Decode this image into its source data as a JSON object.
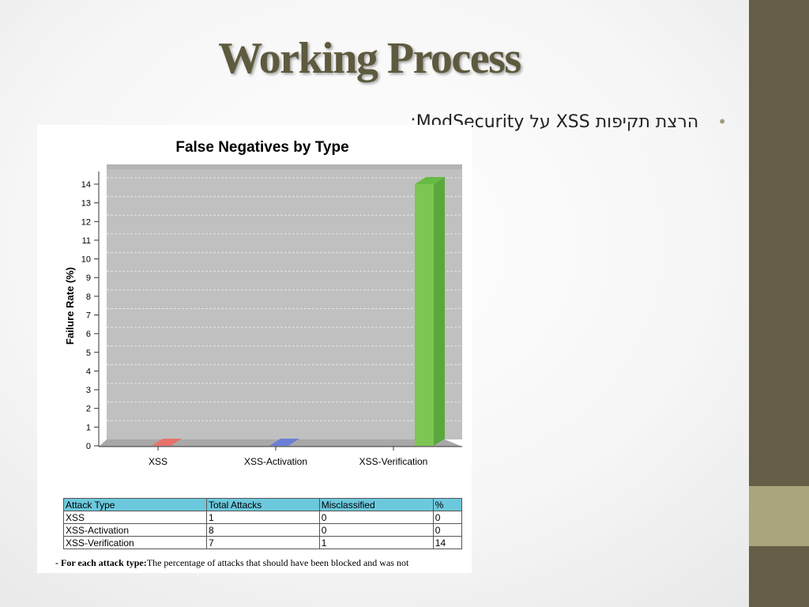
{
  "slide": {
    "title": "Working Process",
    "bullet": "הרצת תקיפות XSS על ModSecurity:"
  },
  "chart_data": {
    "type": "bar",
    "title": "False Negatives by Type",
    "xlabel": "",
    "ylabel": "Failure Rate (%)",
    "categories": [
      "XSS",
      "XSS-Activation",
      "XSS-Verification"
    ],
    "values": [
      0,
      0,
      14
    ],
    "colors": [
      "#e8726a",
      "#6a7fd6",
      "#7dc653"
    ],
    "ylim": [
      0,
      14
    ],
    "yticks": [
      "0",
      "1",
      "2",
      "3",
      "4",
      "5",
      "6",
      "7",
      "8",
      "9",
      "10",
      "11",
      "12",
      "13",
      "14"
    ],
    "grid": true,
    "legend": "none"
  },
  "table": {
    "headers": [
      "Attack Type",
      "Total Attacks",
      "Misclassified",
      "%"
    ],
    "rows": [
      [
        "XSS",
        "1",
        "0",
        "0"
      ],
      [
        "XSS-Activation",
        "8",
        "0",
        "0"
      ],
      [
        "XSS-Verification",
        "7",
        "1",
        "14"
      ]
    ]
  },
  "footnote": {
    "label": "- For each attack type:",
    "text": "The percentage of attacks that should have been blocked and was not"
  },
  "colors": {
    "sidebar": "#655e47",
    "sidebar_accent": "#a9a57c",
    "title": "#5e5a3e",
    "table_header": "#6cc9dd",
    "plot_bg": "#c0c0c0"
  }
}
